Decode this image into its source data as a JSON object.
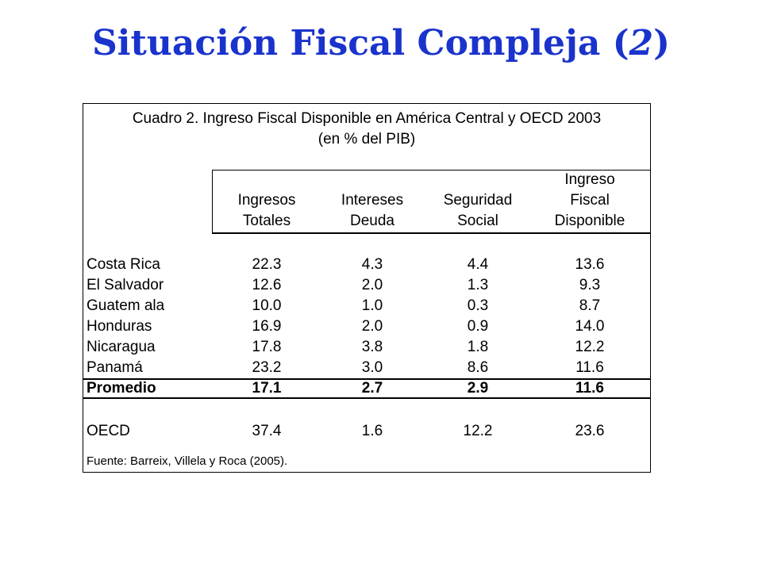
{
  "slide": {
    "title": "Situación Fiscal Compleja (",
    "title_num": "2",
    "title_close": ")",
    "title_color": "#1a33cc"
  },
  "table": {
    "caption_line1": "Cuadro 2. Ingreso Fiscal Disponible en América Central y OECD 2003",
    "caption_line2": "(en % del PIB)",
    "headers": [
      {
        "lines": [
          "Ingresos",
          "Totales"
        ]
      },
      {
        "lines": [
          "Intereses",
          "Deuda"
        ]
      },
      {
        "lines": [
          "Seguridad",
          "Social"
        ]
      },
      {
        "lines": [
          "Ingreso",
          "Fiscal",
          "Disponible"
        ]
      }
    ],
    "rows": [
      {
        "country": "Costa Rica",
        "values": [
          "22.3",
          "4.3",
          "4.4",
          "13.6"
        ]
      },
      {
        "country": "El Salvador",
        "values": [
          "12.6",
          "2.0",
          "1.3",
          "9.3"
        ]
      },
      {
        "country": "Guatem ala",
        "values": [
          "10.0",
          "1.0",
          "0.3",
          "8.7"
        ]
      },
      {
        "country": "Honduras",
        "values": [
          "16.9",
          "2.0",
          "0.9",
          "14.0"
        ]
      },
      {
        "country": "Nicaragua",
        "values": [
          "17.8",
          "3.8",
          "1.8",
          "12.2"
        ]
      },
      {
        "country": "Panamá",
        "values": [
          "23.2",
          "3.0",
          "8.6",
          "11.6"
        ]
      }
    ],
    "average": {
      "country": "Promedio",
      "values": [
        "17.1",
        "2.7",
        "2.9",
        "11.6"
      ]
    },
    "oecd": {
      "country": "OECD",
      "values": [
        "37.4",
        "1.6",
        "12.2",
        "23.6"
      ]
    },
    "source": "Fuente: Barreix, Villela y Roca (2005)."
  }
}
